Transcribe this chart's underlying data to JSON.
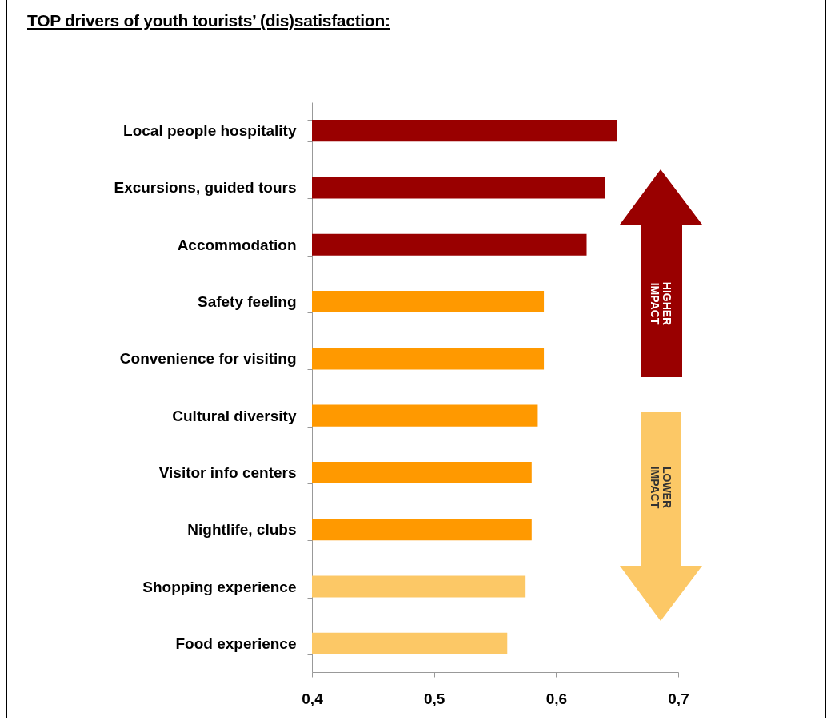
{
  "chart_data": {
    "type": "bar",
    "orientation": "horizontal",
    "title": "TOP drivers of youth tourists’ (dis)satisfaction:",
    "categories": [
      "Local people hospitality",
      "Excursions, guided tours",
      "Accommodation",
      "Safety feeling",
      "Convenience for visiting",
      "Cultural diversity",
      "Visitor info centers",
      "Nightlife, clubs",
      "Shopping experience",
      "Food experience"
    ],
    "values": [
      0.65,
      0.64,
      0.625,
      0.59,
      0.59,
      0.585,
      0.58,
      0.58,
      0.575,
      0.56
    ],
    "colors": [
      "#990000",
      "#990000",
      "#990000",
      "#ff9900",
      "#ff9900",
      "#ff9900",
      "#ff9900",
      "#ff9900",
      "#fcc866",
      "#fcc866"
    ],
    "xlim": [
      0.4,
      0.7
    ],
    "xticks": [
      {
        "value": 0.4,
        "label": "0,4"
      },
      {
        "value": 0.5,
        "label": "0,5"
      },
      {
        "value": 0.6,
        "label": "0,6"
      },
      {
        "value": 0.7,
        "label": "0,7"
      }
    ],
    "grid": false,
    "legend": false,
    "annotations": [
      "HIGHER IMPACT",
      "LOWER IMPACT"
    ]
  }
}
